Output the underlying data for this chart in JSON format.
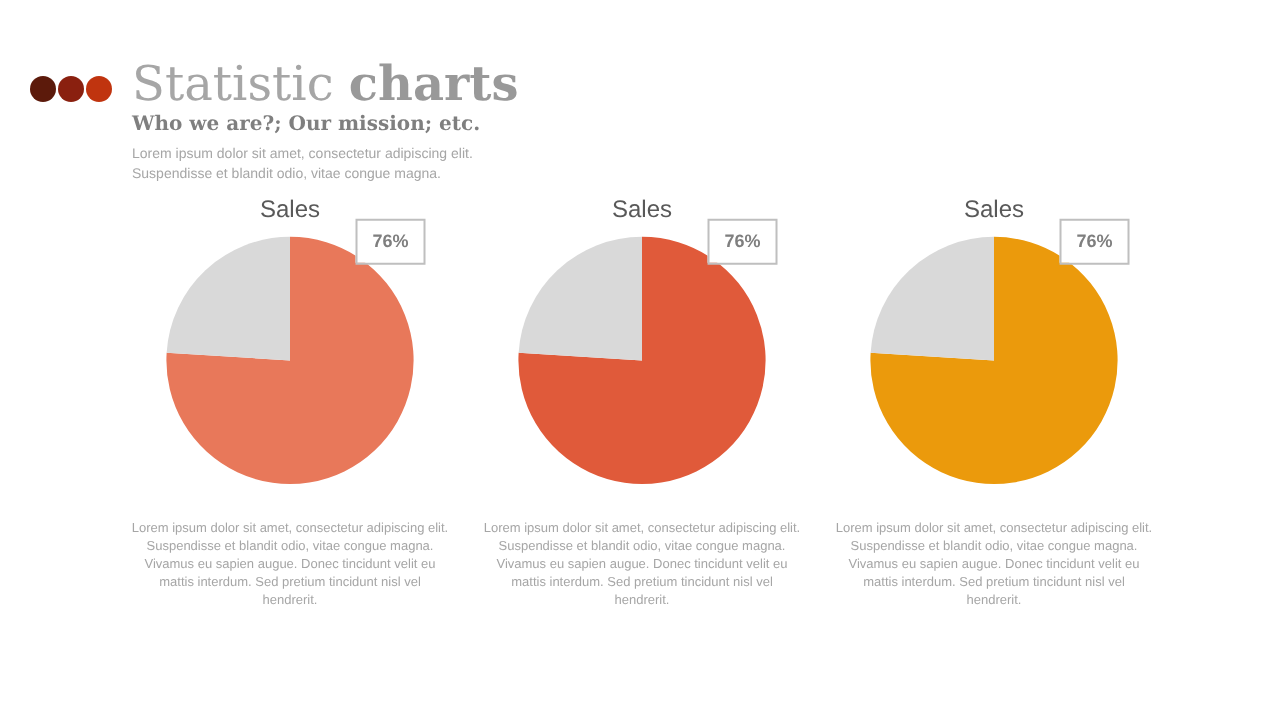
{
  "chart_data": [
    {
      "type": "other",
      "title": "Statistic charts",
      "subtitle": "Who we are?; Our mission; etc.",
      "annotations": [
        "Lorem ipsum dolor sit amet, consectetur adipiscing elit.\nSuspendisse et blandit odio, vitae congue magna."
      ]
    },
    {
      "type": "pie",
      "title": "Sales",
      "categories": [
        null,
        null
      ],
      "values": [
        76,
        24
      ],
      "colors": [
        "#e8785a",
        "#d9d9d9"
      ],
      "value_labels": [
        "76%",
        null
      ],
      "annotations": [
        "Lorem ipsum dolor sit amet, consectetur adipiscing elit.\nSuspendisse et blandit odio, vitae congue magna.\nVivamus eu sapien augue. Donec tincidunt velit eu\nmattis interdum. Sed pretium tincidunt nisl vel\nhendrerit."
      ]
    },
    {
      "type": "pie",
      "title": "Sales",
      "categories": [
        null,
        null
      ],
      "values": [
        76,
        24
      ],
      "colors": [
        "#e05a3a",
        "#d9d9d9"
      ],
      "value_labels": [
        "76%",
        null
      ],
      "annotations": [
        "Lorem ipsum dolor sit amet, consectetur adipiscing elit.\nSuspendisse et blandit odio, vitae congue magna.\nVivamus eu sapien augue. Donec tincidunt velit eu\nmattis interdum. Sed pretium tincidunt nisl vel\nhendrerit."
      ]
    },
    {
      "type": "pie",
      "title": "Sales",
      "categories": [
        null,
        null
      ],
      "values": [
        76,
        24
      ],
      "colors": [
        "#eb9a0c",
        "#d9d9d9"
      ],
      "value_labels": [
        "76%",
        null
      ],
      "annotations": [
        "Lorem ipsum dolor sit amet, consectetur adipiscing elit.\nSuspendisse et blandit odio, vitae congue magna.\nVivamus eu sapien augue. Donec tincidunt velit eu\nmattis interdum. Sed pretium tincidunt nisl vel\nhendrerit."
      ]
    }
  ]
}
